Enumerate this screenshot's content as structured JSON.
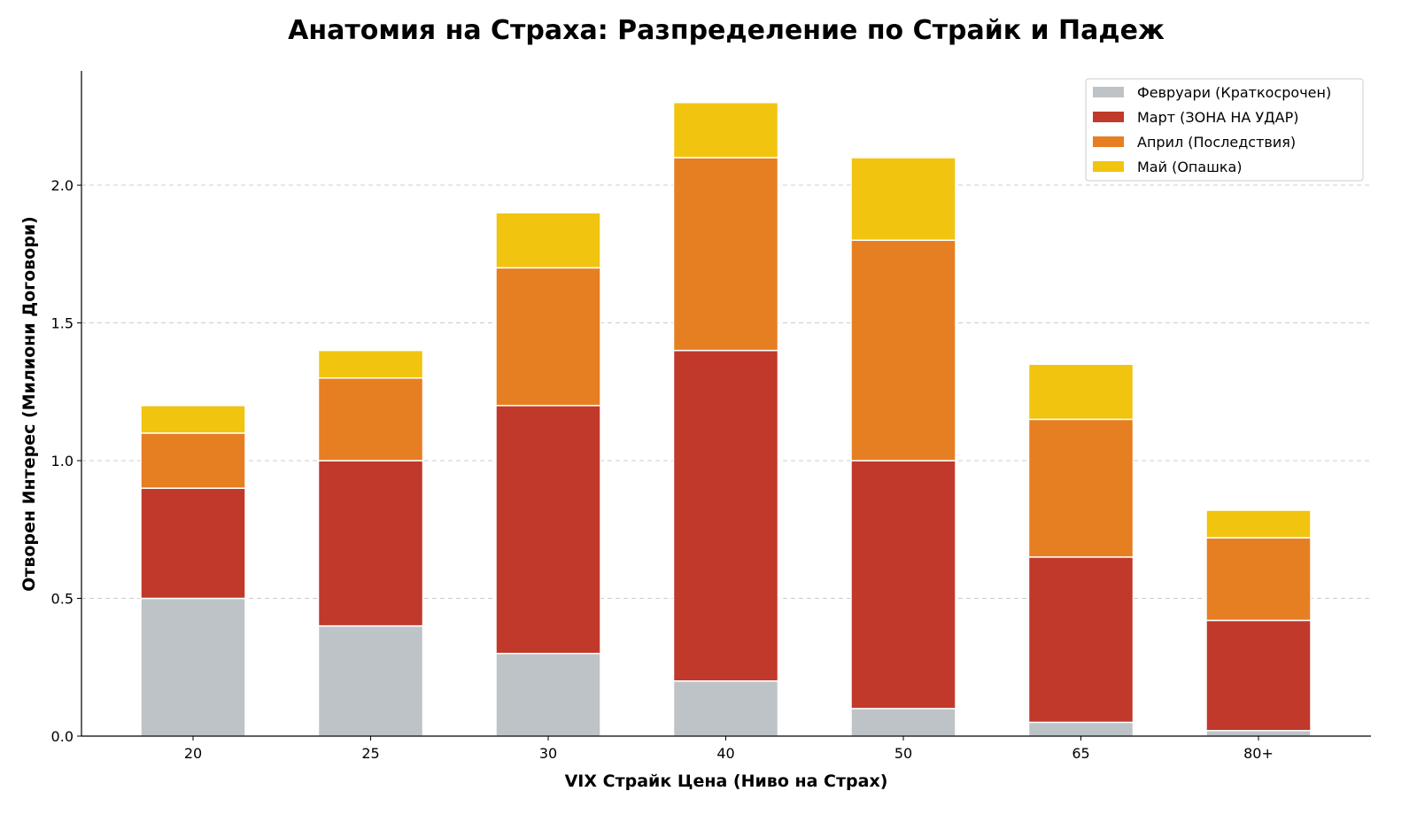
{
  "chart_data": {
    "type": "bar",
    "stacked": true,
    "title": "Анатомия на Страха: Разпределение по Страйк и Падеж",
    "xlabel": "VIX Страйк Цена (Ниво на Страх)",
    "ylabel": "Отворен Интерес (Милиони Договори)",
    "categories": [
      "20",
      "25",
      "30",
      "40",
      "50",
      "65",
      "80+"
    ],
    "ylim": [
      0,
      2.415
    ],
    "yticks": [
      "0.0",
      "0.5",
      "1.0",
      "1.5",
      "2.0"
    ],
    "ytick_values": [
      0,
      0.5,
      1.0,
      1.5,
      2.0
    ],
    "grid": "y-dashed",
    "legend_position": "top-right",
    "series": [
      {
        "name": "Февруари (Краткосрочен)",
        "color": "#bdc3c7",
        "values": [
          0.5,
          0.4,
          0.3,
          0.2,
          0.1,
          0.05,
          0.02
        ]
      },
      {
        "name": "Март (ЗОНА НА УДАР)",
        "color": "#c0392b",
        "values": [
          0.4,
          0.6,
          0.9,
          1.2,
          0.9,
          0.6,
          0.4
        ]
      },
      {
        "name": "Април (Последствия)",
        "color": "#e67e22",
        "values": [
          0.2,
          0.3,
          0.5,
          0.7,
          0.8,
          0.5,
          0.3
        ]
      },
      {
        "name": "Май (Опашка)",
        "color": "#f1c40f",
        "values": [
          0.1,
          0.1,
          0.2,
          0.2,
          0.3,
          0.2,
          0.1
        ]
      }
    ]
  }
}
